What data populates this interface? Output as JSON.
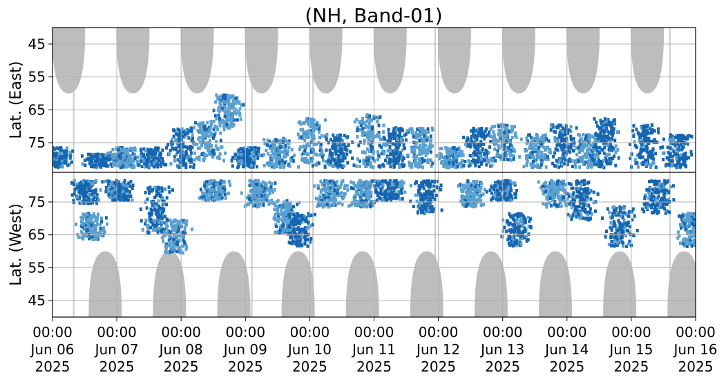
{
  "chart_data": {
    "type": "heatmap",
    "title": "(NH, Band-01)",
    "ylabel_top": "Lat. (East)",
    "ylabel_bottom": "Lat. (West)",
    "x_start": "2025-06-06T00:00",
    "x_end": "2025-06-16T00:00",
    "x_ticks": [
      {
        "time": "00:00",
        "date": "Jun 06",
        "year": "2025"
      },
      {
        "time": "00:00",
        "date": "Jun 07",
        "year": "2025"
      },
      {
        "time": "00:00",
        "date": "Jun 08",
        "year": "2025"
      },
      {
        "time": "00:00",
        "date": "Jun 09",
        "year": "2025"
      },
      {
        "time": "00:00",
        "date": "Jun 10",
        "year": "2025"
      },
      {
        "time": "00:00",
        "date": "Jun 11",
        "year": "2025"
      },
      {
        "time": "00:00",
        "date": "Jun 12",
        "year": "2025"
      },
      {
        "time": "00:00",
        "date": "Jun 13",
        "year": "2025"
      },
      {
        "time": "00:00",
        "date": "Jun 14",
        "year": "2025"
      },
      {
        "time": "00:00",
        "date": "Jun 15",
        "year": "2025"
      },
      {
        "time": "00:00",
        "date": "Jun 16",
        "year": "2025"
      }
    ],
    "east_panel": {
      "ylim": [
        40,
        84
      ],
      "yticks": [
        "45",
        "55",
        "65",
        "75"
      ]
    },
    "west_panel": {
      "ylim": [
        40,
        84
      ],
      "yticks": [
        "75",
        "65",
        "55",
        "45"
      ]
    },
    "grid": true,
    "colors": {
      "strong": "#1565b0",
      "weak": "#5aa0d0",
      "daylight_mask": "#bdbdbd",
      "grid": "#b0b0b0"
    },
    "daylight_mask_east": [
      {
        "center_day": 0.25,
        "min_lat": 60
      },
      {
        "center_day": 1.25,
        "min_lat": 60
      },
      {
        "center_day": 2.25,
        "min_lat": 60
      },
      {
        "center_day": 3.25,
        "min_lat": 60
      },
      {
        "center_day": 4.25,
        "min_lat": 60
      },
      {
        "center_day": 5.25,
        "min_lat": 60
      },
      {
        "center_day": 6.25,
        "min_lat": 60
      },
      {
        "center_day": 7.25,
        "min_lat": 60
      },
      {
        "center_day": 8.25,
        "min_lat": 60
      },
      {
        "center_day": 9.25,
        "min_lat": 60
      }
    ],
    "daylight_mask_west": [
      {
        "center_day": 0.82,
        "min_lat": 60
      },
      {
        "center_day": 1.82,
        "min_lat": 60
      },
      {
        "center_day": 2.82,
        "min_lat": 60
      },
      {
        "center_day": 3.82,
        "min_lat": 60
      },
      {
        "center_day": 4.82,
        "min_lat": 60
      },
      {
        "center_day": 5.82,
        "min_lat": 60
      },
      {
        "center_day": 6.82,
        "min_lat": 60
      },
      {
        "center_day": 7.82,
        "min_lat": 60
      },
      {
        "center_day": 8.82,
        "min_lat": 60
      },
      {
        "center_day": 9.82,
        "min_lat": 60
      }
    ],
    "echo_regions_east": [
      {
        "day": 0.05,
        "lat_range": [
          76,
          82
        ],
        "level": "strong"
      },
      {
        "day": 0.7,
        "lat_range": [
          78,
          82
        ],
        "level": "strong"
      },
      {
        "day": 1.1,
        "lat_range": [
          76,
          82
        ],
        "level": "weak"
      },
      {
        "day": 1.5,
        "lat_range": [
          76,
          82
        ],
        "level": "strong"
      },
      {
        "day": 2.0,
        "lat_range": [
          70,
          82
        ],
        "level": "strong"
      },
      {
        "day": 2.4,
        "lat_range": [
          68,
          80
        ],
        "level": "weak"
      },
      {
        "day": 2.7,
        "lat_range": [
          60,
          70
        ],
        "level": "weak"
      },
      {
        "day": 3.0,
        "lat_range": [
          76,
          82
        ],
        "level": "strong"
      },
      {
        "day": 3.5,
        "lat_range": [
          73,
          82
        ],
        "level": "weak"
      },
      {
        "day": 4.0,
        "lat_range": [
          67,
          82
        ],
        "level": "weak"
      },
      {
        "day": 4.4,
        "lat_range": [
          72,
          82
        ],
        "level": "strong"
      },
      {
        "day": 4.9,
        "lat_range": [
          66,
          82
        ],
        "level": "weak"
      },
      {
        "day": 5.3,
        "lat_range": [
          70,
          82
        ],
        "level": "strong"
      },
      {
        "day": 5.7,
        "lat_range": [
          70,
          82
        ],
        "level": "weak"
      },
      {
        "day": 6.2,
        "lat_range": [
          76,
          82
        ],
        "level": "weak"
      },
      {
        "day": 6.6,
        "lat_range": [
          70,
          82
        ],
        "level": "strong"
      },
      {
        "day": 7.0,
        "lat_range": [
          69,
          80
        ],
        "level": "weak"
      },
      {
        "day": 7.5,
        "lat_range": [
          72,
          82
        ],
        "level": "weak"
      },
      {
        "day": 7.9,
        "lat_range": [
          69,
          82
        ],
        "level": "strong"
      },
      {
        "day": 8.3,
        "lat_range": [
          72,
          82
        ],
        "level": "weak"
      },
      {
        "day": 8.6,
        "lat_range": [
          67,
          82
        ],
        "level": "strong"
      },
      {
        "day": 9.2,
        "lat_range": [
          69,
          82
        ],
        "level": "strong"
      },
      {
        "day": 9.7,
        "lat_range": [
          72,
          82
        ],
        "level": "strong"
      }
    ],
    "echo_regions_west": [
      {
        "day": 0.5,
        "lat_range": [
          75,
          82
        ],
        "level": "strong"
      },
      {
        "day": 0.6,
        "lat_range": [
          64,
          72
        ],
        "level": "weak"
      },
      {
        "day": 1.0,
        "lat_range": [
          76,
          82
        ],
        "level": "strong"
      },
      {
        "day": 1.6,
        "lat_range": [
          66,
          80
        ],
        "level": "strong"
      },
      {
        "day": 1.9,
        "lat_range": [
          60,
          70
        ],
        "level": "weak"
      },
      {
        "day": 2.5,
        "lat_range": [
          76,
          82
        ],
        "level": "weak"
      },
      {
        "day": 3.2,
        "lat_range": [
          74,
          82
        ],
        "level": "weak"
      },
      {
        "day": 3.6,
        "lat_range": [
          66,
          76
        ],
        "level": "weak"
      },
      {
        "day": 3.8,
        "lat_range": [
          62,
          72
        ],
        "level": "strong"
      },
      {
        "day": 4.3,
        "lat_range": [
          74,
          82
        ],
        "level": "weak"
      },
      {
        "day": 4.8,
        "lat_range": [
          74,
          82
        ],
        "level": "weak"
      },
      {
        "day": 5.2,
        "lat_range": [
          76,
          82
        ],
        "level": "strong"
      },
      {
        "day": 5.8,
        "lat_range": [
          72,
          82
        ],
        "level": "strong"
      },
      {
        "day": 6.5,
        "lat_range": [
          74,
          82
        ],
        "level": "weak"
      },
      {
        "day": 7.0,
        "lat_range": [
          76,
          82
        ],
        "level": "strong"
      },
      {
        "day": 7.2,
        "lat_range": [
          62,
          72
        ],
        "level": "strong"
      },
      {
        "day": 7.8,
        "lat_range": [
          74,
          82
        ],
        "level": "weak"
      },
      {
        "day": 8.2,
        "lat_range": [
          70,
          82
        ],
        "level": "strong"
      },
      {
        "day": 8.8,
        "lat_range": [
          62,
          74
        ],
        "level": "strong"
      },
      {
        "day": 9.4,
        "lat_range": [
          72,
          82
        ],
        "level": "strong"
      },
      {
        "day": 9.9,
        "lat_range": [
          62,
          72
        ],
        "level": "weak"
      }
    ]
  }
}
